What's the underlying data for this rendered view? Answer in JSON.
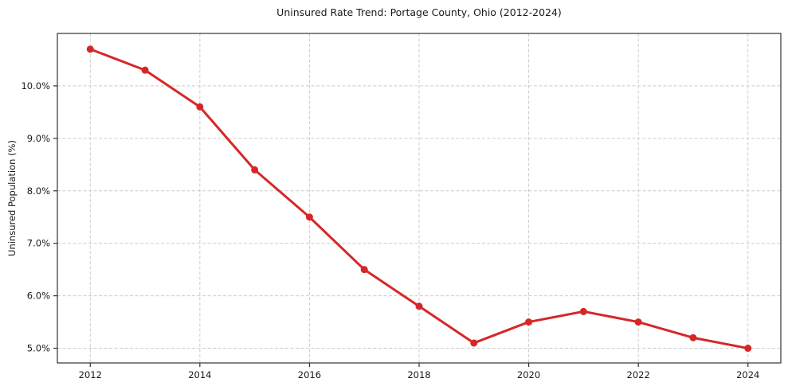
{
  "chart_data": {
    "type": "line",
    "title": "Uninsured Rate Trend: Portage County, Ohio (2012-2024)",
    "xlabel": "",
    "ylabel": "Uninsured Population (%)",
    "x": [
      2012,
      2013,
      2014,
      2015,
      2016,
      2017,
      2018,
      2019,
      2020,
      2021,
      2022,
      2023,
      2024
    ],
    "values": [
      10.7,
      10.3,
      9.6,
      8.4,
      7.5,
      6.5,
      5.8,
      5.1,
      5.5,
      5.7,
      5.5,
      5.2,
      5.0
    ],
    "xticks": [
      2012,
      2014,
      2016,
      2018,
      2020,
      2022,
      2024
    ],
    "yticks": [
      5.0,
      6.0,
      7.0,
      8.0,
      9.0,
      10.0
    ],
    "ytick_suffix": "%",
    "xlim": [
      2011.4,
      2024.6
    ],
    "ylim": [
      4.72,
      11.0
    ],
    "grid": true,
    "legend": "none",
    "line_color": "#d62728",
    "marker": "circle"
  }
}
